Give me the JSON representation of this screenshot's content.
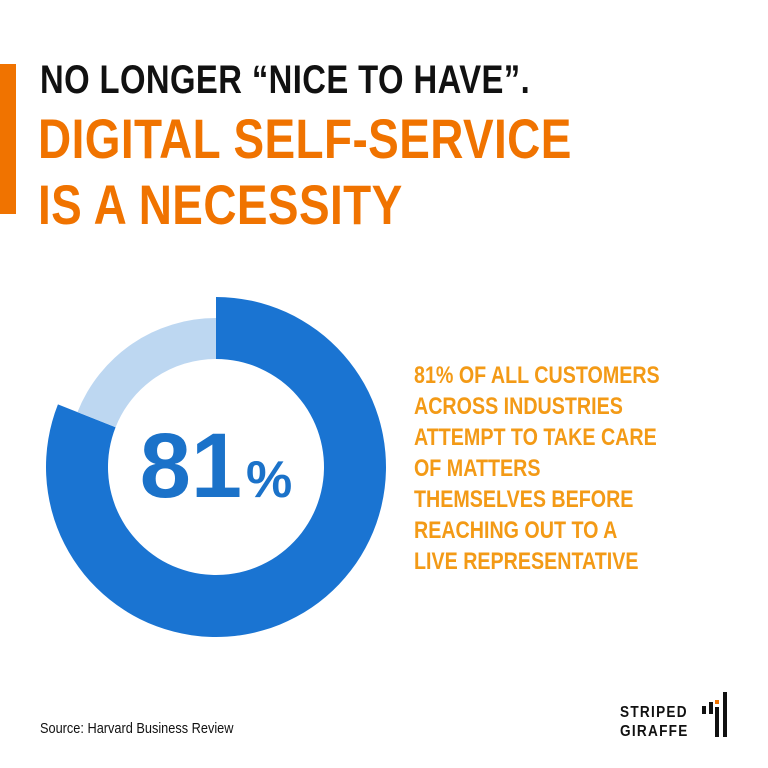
{
  "header": {
    "line1": "NO LONGER “NICE TO HAVE”.",
    "line2": "DIGITAL SELF-SERVICE",
    "line3": "IS A NECESSITY"
  },
  "chart_data": {
    "type": "pie",
    "variant": "donut",
    "values": [
      81,
      19
    ],
    "center_label": "81",
    "center_unit": "%",
    "colors": [
      "#1a74d2",
      "#bdd7f1"
    ]
  },
  "description": [
    "81% OF ALL CUSTOMERS",
    "ACROSS INDUSTRIES",
    "ATTEMPT TO TAKE CARE",
    "OF MATTERS",
    "THEMSELVES BEFORE",
    "REACHING OUT TO A",
    "LIVE REPRESENTATIVE"
  ],
  "footer": {
    "source": "Source: Harvard Business Review",
    "brand_line1": "STRIPED",
    "brand_line2": "GIRAFFE"
  },
  "colors": {
    "accent": "#f07300",
    "primary": "#1a74d2",
    "secondary": "#bdd7f1"
  }
}
